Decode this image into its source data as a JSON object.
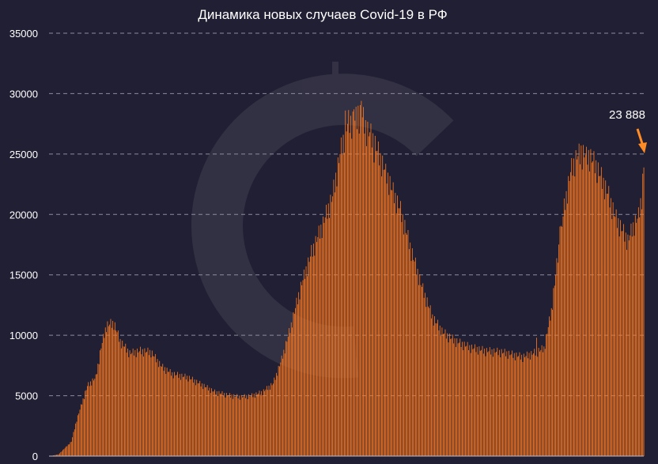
{
  "chart_data": {
    "type": "bar",
    "title": "Динамика новых случаев Covid-19 в РФ",
    "xlabel": "",
    "ylabel": "",
    "ylim": [
      0,
      35000
    ],
    "yticks": [
      "0",
      "5000",
      "10000",
      "15000",
      "20000",
      "25000",
      "30000",
      "35000"
    ],
    "grid": true,
    "legend": "none",
    "bar_color": "#ff7a1f",
    "background": "#211f33",
    "annotation": {
      "label": "23 888",
      "value": 23888
    },
    "profile": [
      [
        0,
        0
      ],
      [
        8,
        150
      ],
      [
        20,
        1200
      ],
      [
        25,
        3000
      ],
      [
        35,
        5800
      ],
      [
        43,
        6500
      ],
      [
        48,
        9000
      ],
      [
        53,
        10800
      ],
      [
        60,
        11000
      ],
      [
        66,
        9500
      ],
      [
        75,
        8500
      ],
      [
        85,
        8700
      ],
      [
        95,
        8600
      ],
      [
        105,
        7400
      ],
      [
        115,
        6800
      ],
      [
        130,
        6500
      ],
      [
        145,
        5800
      ],
      [
        155,
        5300
      ],
      [
        170,
        5000
      ],
      [
        180,
        4900
      ],
      [
        190,
        5000
      ],
      [
        200,
        5300
      ],
      [
        210,
        6000
      ],
      [
        218,
        8000
      ],
      [
        226,
        10500
      ],
      [
        236,
        14000
      ],
      [
        246,
        16800
      ],
      [
        256,
        19000
      ],
      [
        266,
        21500
      ],
      [
        273,
        25000
      ],
      [
        280,
        27500
      ],
      [
        288,
        27800
      ],
      [
        293,
        28300
      ],
      [
        298,
        27000
      ],
      [
        304,
        26200
      ],
      [
        310,
        24800
      ],
      [
        316,
        23500
      ],
      [
        322,
        22000
      ],
      [
        330,
        20300
      ],
      [
        340,
        17000
      ],
      [
        350,
        14000
      ],
      [
        360,
        11500
      ],
      [
        370,
        10200
      ],
      [
        382,
        9500
      ],
      [
        395,
        9000
      ],
      [
        410,
        8700
      ],
      [
        425,
        8600
      ],
      [
        435,
        8400
      ],
      [
        445,
        8200
      ],
      [
        455,
        8500
      ],
      [
        465,
        8900
      ],
      [
        472,
        12000
      ],
      [
        478,
        16500
      ],
      [
        484,
        20500
      ],
      [
        490,
        23500
      ],
      [
        496,
        24800
      ],
      [
        502,
        25000
      ],
      [
        508,
        24800
      ],
      [
        514,
        24000
      ],
      [
        520,
        22800
      ],
      [
        526,
        21500
      ],
      [
        532,
        19800
      ],
      [
        538,
        18800
      ],
      [
        544,
        17800
      ],
      [
        550,
        19200
      ],
      [
        554,
        19800
      ],
      [
        557,
        21500
      ],
      [
        559,
        23888
      ]
    ],
    "spikes": [
      [
        293,
        29400
      ],
      [
        290,
        29000
      ],
      [
        286,
        28700
      ],
      [
        305,
        24300
      ],
      [
        316,
        24200
      ],
      [
        301,
        26800
      ],
      [
        278,
        28600
      ],
      [
        500,
        25700
      ],
      [
        505,
        25600
      ],
      [
        530,
        21000
      ],
      [
        458,
        9800
      ],
      [
        480,
        19000
      ]
    ]
  }
}
